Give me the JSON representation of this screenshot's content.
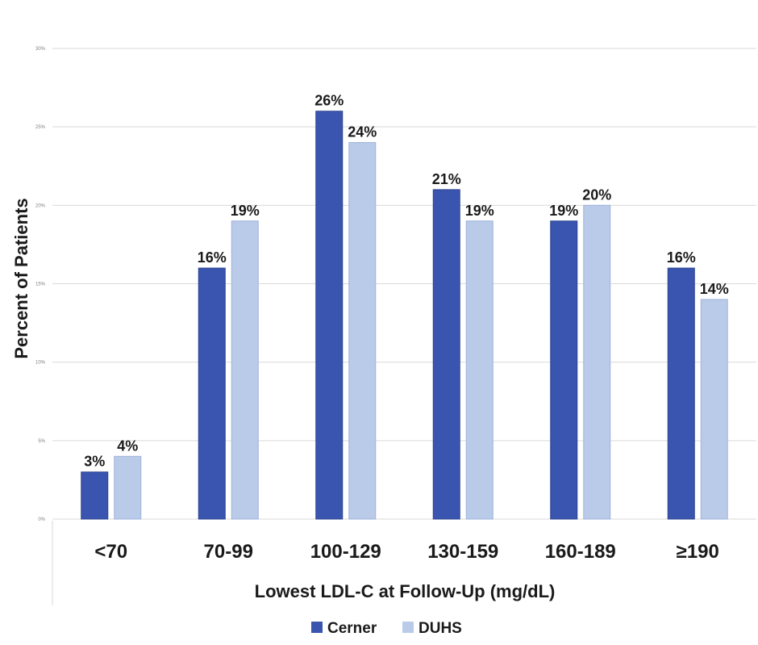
{
  "chart_data": {
    "type": "bar",
    "categories": [
      "<70",
      "70-99",
      "100-129",
      "130-159",
      "160-189",
      "≥190"
    ],
    "series": [
      {
        "name": "Cerner",
        "values": [
          3,
          16,
          26,
          21,
          19,
          16
        ],
        "color": "#3a55b0"
      },
      {
        "name": "DUHS",
        "values": [
          4,
          19,
          24,
          19,
          20,
          14
        ],
        "color": "#b9cbe8"
      }
    ],
    "data_labels": [
      [
        "3%",
        "16%",
        "26%",
        "21%",
        "19%",
        "16%"
      ],
      [
        "4%",
        "19%",
        "24%",
        "19%",
        "20%",
        "14%"
      ]
    ],
    "yticks": [
      0,
      5,
      10,
      15,
      20,
      25,
      30
    ],
    "ytick_labels": [
      "0%",
      "5%",
      "10%",
      "15%",
      "20%",
      "25%",
      "30%"
    ],
    "ylim": [
      0,
      30
    ],
    "xlabel": "Lowest LDL-C at Follow-Up (mg/dL)",
    "ylabel": "Percent of Patients",
    "grid": true,
    "legend_position": "bottom-center"
  }
}
